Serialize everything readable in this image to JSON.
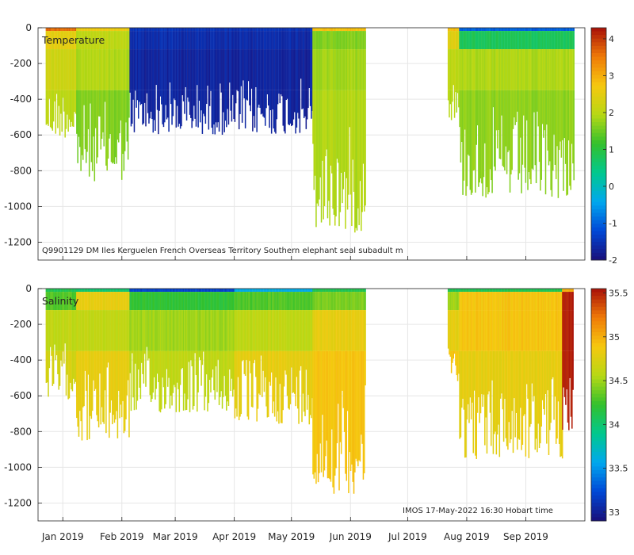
{
  "chart_data": [
    {
      "type": "heatmap",
      "variable_label": "Temperature",
      "annotation": "Q9901129 DM Iles Kerguelen French Overseas Territory Southern elephant seal subadult m",
      "ylim": [
        -1300,
        0
      ],
      "y_ticks": [
        0,
        -200,
        -400,
        -600,
        -800,
        -1000,
        -1200
      ],
      "y_tick_labels": [
        "0",
        "-200",
        "-400",
        "-600",
        "-800",
        "-1000",
        "-1200"
      ],
      "colorbar": {
        "min": -2,
        "max": 4.3,
        "ticks": [
          4,
          3,
          2,
          1,
          0,
          -1,
          -2
        ],
        "tick_labels": [
          "4",
          "3",
          "2",
          "1",
          "0",
          "-1",
          "-2"
        ]
      },
      "grid": true,
      "data_segments": [
        {
          "start_day": -9,
          "end_day": 7,
          "value_near_surface": 3.6,
          "value_shallow": 2.5,
          "value_mid": 2.2,
          "value_deep": 2.0,
          "max_depth": 620
        },
        {
          "start_day": 7,
          "end_day": 35,
          "value_near_surface": 2.6,
          "value_shallow": 2.0,
          "value_mid": 1.9,
          "value_deep": 1.6,
          "max_depth": 860
        },
        {
          "start_day": 35,
          "end_day": 131,
          "value_near_surface": -1.5,
          "value_shallow": -1.6,
          "value_mid": -1.7,
          "value_deep": -1.7,
          "max_depth": 600
        },
        {
          "start_day": 131,
          "end_day": 159,
          "value_near_surface": 2.8,
          "value_shallow": 1.6,
          "value_mid": 1.8,
          "value_deep": 1.9,
          "max_depth": 1150
        },
        {
          "start_day": 202,
          "end_day": 208,
          "value_near_surface": 2.8,
          "value_shallow": 2.4,
          "value_mid": 2.0,
          "value_deep": 1.9,
          "max_depth": 520
        },
        {
          "start_day": 208,
          "end_day": 268,
          "value_near_surface": -1.0,
          "value_shallow": 0.8,
          "value_mid": 1.9,
          "value_deep": 1.7,
          "max_depth": 960
        }
      ]
    },
    {
      "type": "heatmap",
      "variable_label": "Salinity",
      "annotation": "IMOS 17-May-2022 16:30 Hobart time",
      "ylim": [
        -1300,
        0
      ],
      "y_ticks": [
        0,
        -200,
        -400,
        -600,
        -800,
        -1000,
        -1200
      ],
      "y_tick_labels": [
        "0",
        "-200",
        "-400",
        "-600",
        "-800",
        "-1000",
        "-1200"
      ],
      "colorbar": {
        "min": 32.9,
        "max": 35.55,
        "ticks": [
          35.5,
          35,
          34.5,
          34,
          33.5,
          33
        ],
        "tick_labels": [
          "35.5",
          "35",
          "34.5",
          "34",
          "33.5",
          "33"
        ]
      },
      "grid": true,
      "data_segments": [
        {
          "start_day": -9,
          "end_day": 7,
          "value_near_surface": 34.1,
          "value_shallow": 34.3,
          "value_mid": 34.6,
          "value_deep": 34.7,
          "max_depth": 620
        },
        {
          "start_day": 7,
          "end_day": 35,
          "value_near_surface": 34.0,
          "value_shallow": 34.8,
          "value_mid": 34.6,
          "value_deep": 34.8,
          "max_depth": 860
        },
        {
          "start_day": 35,
          "end_day": 90,
          "value_near_surface": 33.2,
          "value_shallow": 34.2,
          "value_mid": 34.5,
          "value_deep": 34.6,
          "max_depth": 700
        },
        {
          "start_day": 90,
          "end_day": 131,
          "value_near_surface": 33.6,
          "value_shallow": 34.3,
          "value_mid": 34.6,
          "value_deep": 34.8,
          "max_depth": 760
        },
        {
          "start_day": 131,
          "end_day": 159,
          "value_near_surface": 34.1,
          "value_shallow": 34.4,
          "value_mid": 34.8,
          "value_deep": 34.9,
          "max_depth": 1150
        },
        {
          "start_day": 202,
          "end_day": 208,
          "value_near_surface": 34.1,
          "value_shallow": 34.5,
          "value_mid": 34.8,
          "value_deep": 34.9,
          "max_depth": 520
        },
        {
          "start_day": 208,
          "end_day": 262,
          "value_near_surface": 34.1,
          "value_shallow": 34.9,
          "value_mid": 34.9,
          "value_deep": 34.8,
          "max_depth": 960
        },
        {
          "start_day": 262,
          "end_day": 268,
          "value_near_surface": 35.0,
          "value_shallow": 35.5,
          "value_mid": 35.5,
          "value_deep": 35.5,
          "max_depth": 800
        }
      ]
    }
  ],
  "x_axis": {
    "ticks": [
      0,
      31,
      59,
      90,
      120,
      151,
      181,
      212,
      243
    ],
    "tick_labels": [
      "Jan 2019",
      "Feb 2019",
      "Mar 2019",
      "Apr 2019",
      "May 2019",
      "Jun 2019",
      "Jul 2019",
      "Aug 2019",
      "Sep 2019"
    ],
    "xlim": [
      -13,
      274
    ]
  },
  "colors": {
    "grid": "#e6e6e6",
    "axis": "#262626",
    "colormap": [
      "#1a0f7a",
      "#0047d6",
      "#00a8ee",
      "#00c88e",
      "#33c12d",
      "#b7d814",
      "#f6c80f",
      "#ef7a08",
      "#a80f08"
    ]
  }
}
